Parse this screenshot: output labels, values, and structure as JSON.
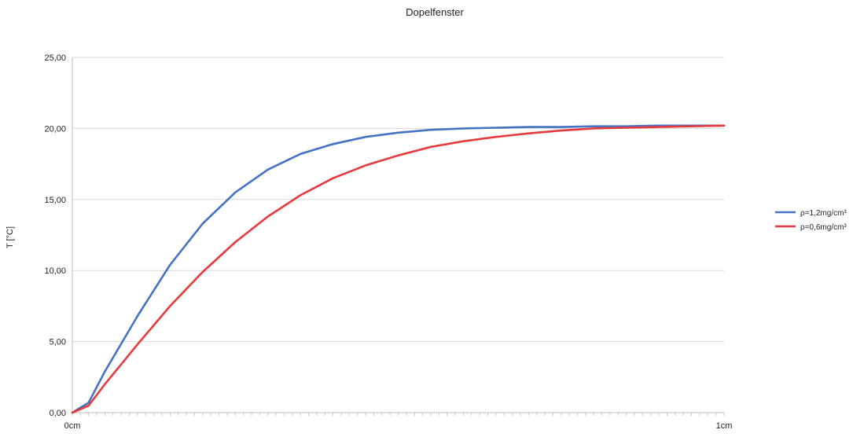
{
  "chart_data": {
    "type": "line",
    "title": "Dopelfenster",
    "xlabel": "",
    "ylabel": "T [°C]",
    "ylim": [
      0,
      25
    ],
    "yticks": [
      "0,00",
      "5,00",
      "10,00",
      "15,00",
      "20,00",
      "25,00"
    ],
    "xlim": [
      0,
      1
    ],
    "xticks": [
      {
        "value": 0,
        "label": "0cm"
      },
      {
        "value": 1,
        "label": "1cm"
      }
    ],
    "grid": true,
    "legend_position": "right",
    "series": [
      {
        "name": "ρ=1,2mg/cm³",
        "color": "#4472c4",
        "x": [
          0,
          0.025,
          0.05,
          0.1,
          0.15,
          0.2,
          0.25,
          0.3,
          0.35,
          0.4,
          0.45,
          0.5,
          0.55,
          0.6,
          0.65,
          0.7,
          0.75,
          0.8,
          0.85,
          0.9,
          0.95,
          1
        ],
        "y": [
          0,
          0.7,
          2.9,
          6.8,
          10.4,
          13.3,
          15.5,
          17.1,
          18.2,
          18.9,
          19.4,
          19.7,
          19.9,
          20.0,
          20.05,
          20.1,
          20.1,
          20.15,
          20.15,
          20.2,
          20.2,
          20.2
        ]
      },
      {
        "name": "ρ=0,6mg/cm³",
        "color": "#e8393c",
        "x": [
          0,
          0.025,
          0.05,
          0.1,
          0.15,
          0.2,
          0.25,
          0.3,
          0.35,
          0.4,
          0.45,
          0.5,
          0.55,
          0.6,
          0.65,
          0.7,
          0.75,
          0.8,
          0.85,
          0.9,
          0.95,
          1
        ],
        "y": [
          0,
          0.5,
          2.0,
          4.8,
          7.5,
          9.9,
          12.0,
          13.8,
          15.3,
          16.5,
          17.4,
          18.1,
          18.7,
          19.1,
          19.4,
          19.65,
          19.85,
          20.0,
          20.05,
          20.1,
          20.15,
          20.2
        ]
      }
    ]
  }
}
